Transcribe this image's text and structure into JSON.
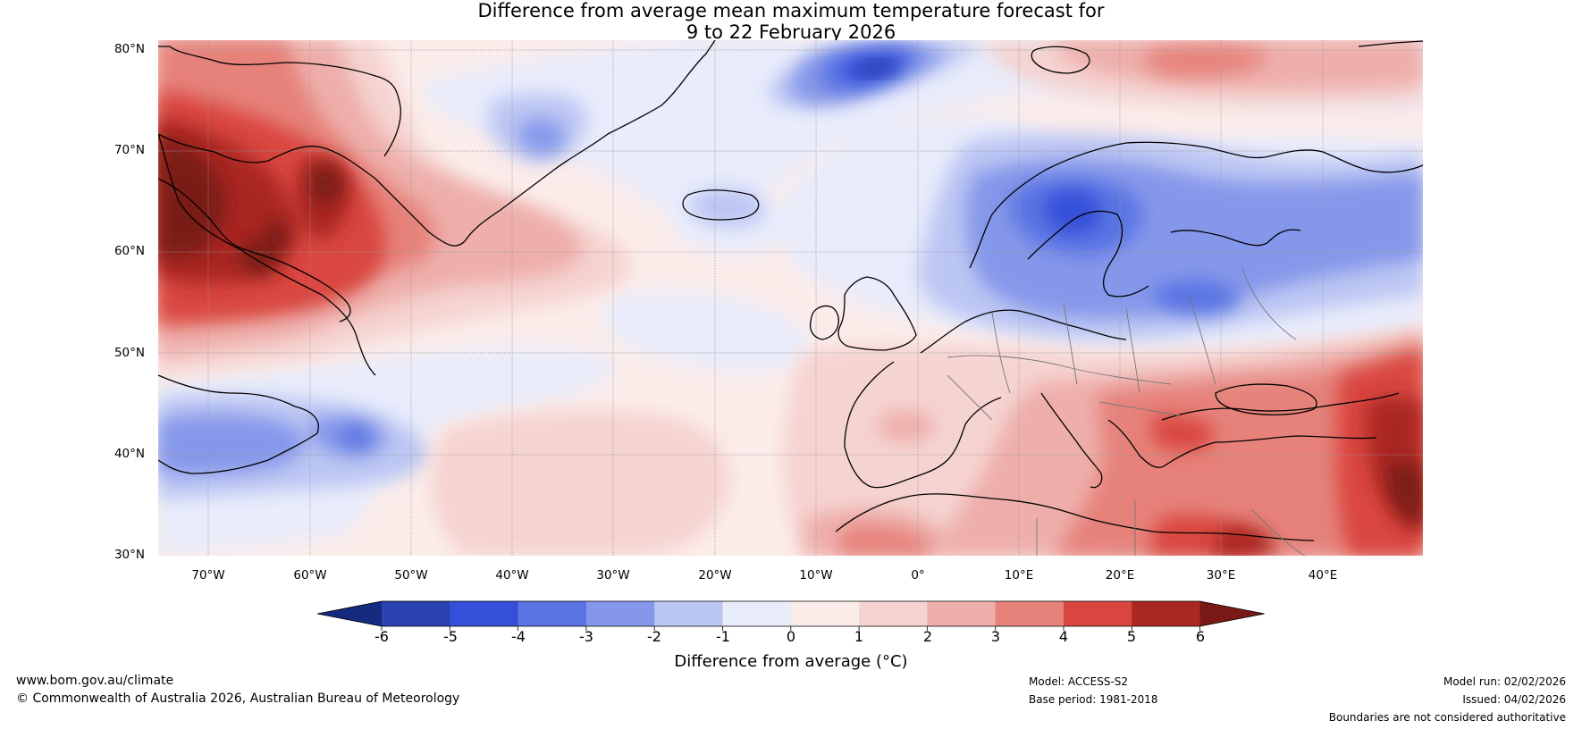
{
  "title": {
    "line1": "Difference from average mean maximum temperature forecast for",
    "line2": "9 to 22 February 2026"
  },
  "map": {
    "lat_labels": [
      "80°N",
      "70°N",
      "60°N",
      "50°N",
      "40°N",
      "30°N"
    ],
    "lon_labels": [
      "70°W",
      "60°W",
      "50°W",
      "40°W",
      "30°W",
      "20°W",
      "10°W",
      "0°",
      "10°E",
      "20°E",
      "30°E",
      "40°E"
    ],
    "lon_range": [
      -75,
      50
    ],
    "lat_range": [
      30,
      81
    ]
  },
  "colorbar": {
    "ticks": [
      "-6",
      "-5",
      "-4",
      "-3",
      "-2",
      "-1",
      "0",
      "1",
      "2",
      "3",
      "4",
      "5",
      "6"
    ],
    "label": "Difference from average (°C)",
    "colors": [
      "#142b80",
      "#2a43b0",
      "#3550d8",
      "#5a74e4",
      "#8597ea",
      "#bcc6f3",
      "#e8ecfb",
      "#fbecea",
      "#f5d3d0",
      "#eeaeaa",
      "#e6827a",
      "#d9463f",
      "#aa2722",
      "#7a1a16"
    ],
    "neutral_color": "#fbecea"
  },
  "footer": {
    "website": "www.bom.gov.au/climate",
    "copyright": "© Commonwealth of Australia 2026, Australian Bureau of Meteorology",
    "model": "Model: ACCESS-S2",
    "base_period": "Base period: 1981-2018",
    "model_run": "Model run: 02/02/2026",
    "issued": "Issued: 04/02/2026",
    "disclaimer": "Boundaries are not considered authoritative"
  }
}
